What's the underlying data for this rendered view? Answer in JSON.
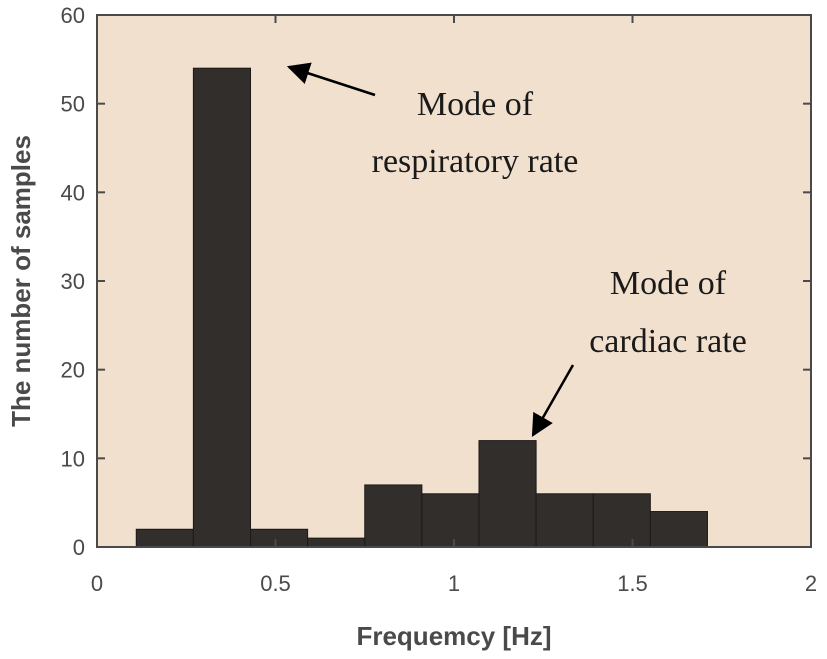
{
  "chart_data": {
    "type": "bar",
    "title": "",
    "xlabel": "Frequemcy [Hz]",
    "ylabel": "The number of samples",
    "xlim": [
      0,
      2
    ],
    "ylim": [
      0,
      60
    ],
    "xticks": [
      "0",
      "0.5",
      "1",
      "1.5",
      "2"
    ],
    "yticks": [
      "0",
      "10",
      "20",
      "30",
      "40",
      "50",
      "60"
    ],
    "grid": false,
    "bin_width": 0.16,
    "bin_centers": [
      0.19,
      0.35,
      0.51,
      0.67,
      0.83,
      0.99,
      1.15,
      1.31,
      1.47,
      1.63
    ],
    "values": [
      2,
      54,
      2,
      1,
      7,
      6,
      12,
      6,
      6,
      4
    ],
    "bar_color": "#312e2b",
    "plot_background": "#f1e0ce",
    "annotations": [
      {
        "lines": [
          "Mode of",
          "respiratory rate"
        ],
        "target_bin": 1
      },
      {
        "lines": [
          "Mode of",
          "cardiac rate"
        ],
        "target_bin": 6
      }
    ]
  }
}
